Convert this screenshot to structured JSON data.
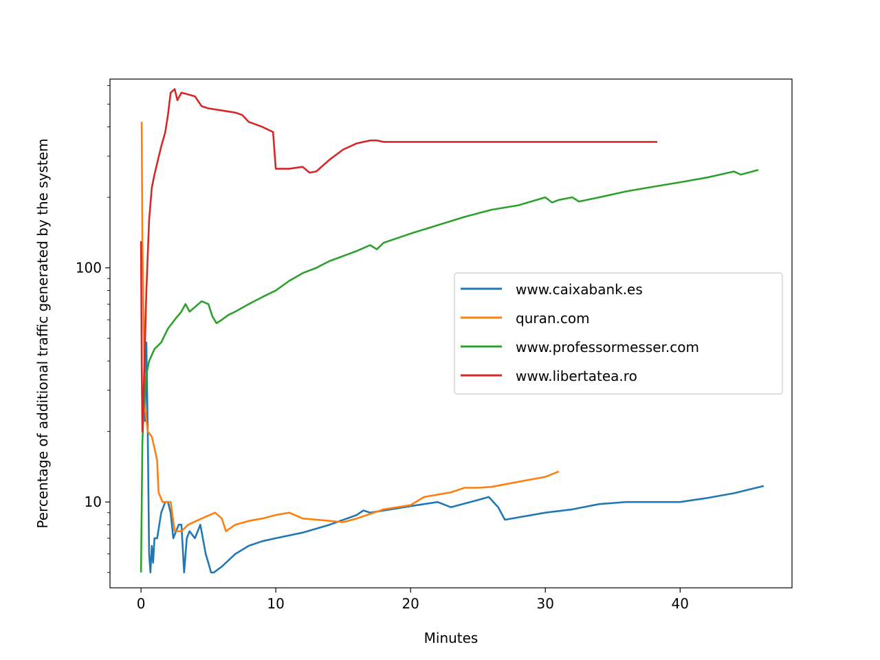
{
  "chart_data": {
    "type": "line",
    "title": "",
    "xlabel": "Minutes",
    "ylabel": "Percentage of additional traffic generated by the system",
    "xlim": [
      -2.3,
      48.3
    ],
    "ylim": [
      4.3,
      640
    ],
    "yscale": "log",
    "x_ticks": [
      0,
      10,
      20,
      30,
      40
    ],
    "x_tick_labels": [
      "0",
      "10",
      "20",
      "30",
      "40"
    ],
    "y_ticks": [
      10,
      100
    ],
    "y_tick_labels": [
      "10",
      "100"
    ],
    "grid": false,
    "legend_position": "center-right",
    "series": [
      {
        "name": "www.caixabank.es",
        "color": "#1f77b4",
        "points": [
          [
            0.3,
            22
          ],
          [
            0.4,
            48
          ],
          [
            0.5,
            20
          ],
          [
            0.6,
            6
          ],
          [
            0.7,
            5
          ],
          [
            0.8,
            6.5
          ],
          [
            0.9,
            5.5
          ],
          [
            1.0,
            7
          ],
          [
            1.2,
            7
          ],
          [
            1.5,
            9
          ],
          [
            1.8,
            10
          ],
          [
            2.0,
            10
          ],
          [
            2.2,
            9
          ],
          [
            2.4,
            7
          ],
          [
            2.6,
            7.5
          ],
          [
            2.8,
            8
          ],
          [
            3.0,
            8
          ],
          [
            3.2,
            5
          ],
          [
            3.4,
            7
          ],
          [
            3.6,
            7.5
          ],
          [
            4.0,
            7
          ],
          [
            4.4,
            8
          ],
          [
            4.8,
            6
          ],
          [
            5.0,
            5.5
          ],
          [
            5.2,
            5
          ],
          [
            5.4,
            5
          ],
          [
            6.0,
            5.3
          ],
          [
            7.0,
            6
          ],
          [
            8.0,
            6.5
          ],
          [
            9.0,
            6.8
          ],
          [
            10.0,
            7
          ],
          [
            12.0,
            7.4
          ],
          [
            14.0,
            8
          ],
          [
            16.0,
            8.8
          ],
          [
            16.5,
            9.2
          ],
          [
            17.0,
            9
          ],
          [
            20.0,
            9.6
          ],
          [
            22.0,
            10
          ],
          [
            23.0,
            9.5
          ],
          [
            25.0,
            10.2
          ],
          [
            25.8,
            10.5
          ],
          [
            26.5,
            9.5
          ],
          [
            27.0,
            8.4
          ],
          [
            30.0,
            9
          ],
          [
            32.0,
            9.3
          ],
          [
            34.0,
            9.8
          ],
          [
            36.0,
            10
          ],
          [
            40.0,
            10
          ],
          [
            42.0,
            10.4
          ],
          [
            44.0,
            10.9
          ],
          [
            46.2,
            11.7
          ]
        ]
      },
      {
        "name": "quran.com",
        "color": "#ff7f0e",
        "points": [
          [
            0.05,
            420
          ],
          [
            0.1,
            130
          ],
          [
            0.2,
            60
          ],
          [
            0.3,
            25
          ],
          [
            0.5,
            20
          ],
          [
            0.8,
            19
          ],
          [
            1.0,
            17
          ],
          [
            1.2,
            15
          ],
          [
            1.3,
            11
          ],
          [
            1.6,
            10
          ],
          [
            2.0,
            10
          ],
          [
            2.2,
            10
          ],
          [
            2.5,
            7.5
          ],
          [
            3.0,
            7.5
          ],
          [
            3.5,
            8
          ],
          [
            4.5,
            8.5
          ],
          [
            5.5,
            9
          ],
          [
            6.0,
            8.5
          ],
          [
            6.3,
            7.5
          ],
          [
            7.0,
            8
          ],
          [
            8.0,
            8.3
          ],
          [
            9.0,
            8.5
          ],
          [
            10.0,
            8.8
          ],
          [
            11.0,
            9
          ],
          [
            12.0,
            8.5
          ],
          [
            14.0,
            8.3
          ],
          [
            15.0,
            8.2
          ],
          [
            16.0,
            8.5
          ],
          [
            18.0,
            9.3
          ],
          [
            20.0,
            9.7
          ],
          [
            21.0,
            10.5
          ],
          [
            23.0,
            11
          ],
          [
            24.0,
            11.5
          ],
          [
            25.0,
            11.5
          ],
          [
            26.0,
            11.6
          ],
          [
            28.0,
            12.2
          ],
          [
            30.0,
            12.8
          ],
          [
            31.0,
            13.5
          ]
        ]
      },
      {
        "name": "www.professormesser.com",
        "color": "#2ca02c",
        "points": [
          [
            0.0,
            5
          ],
          [
            0.1,
            18
          ],
          [
            0.2,
            25
          ],
          [
            0.4,
            35
          ],
          [
            0.6,
            40
          ],
          [
            1.0,
            45
          ],
          [
            1.5,
            48
          ],
          [
            2.0,
            55
          ],
          [
            2.5,
            60
          ],
          [
            3.0,
            65
          ],
          [
            3.3,
            70
          ],
          [
            3.6,
            65
          ],
          [
            4.0,
            68
          ],
          [
            4.5,
            72
          ],
          [
            5.0,
            70
          ],
          [
            5.3,
            62
          ],
          [
            5.6,
            58
          ],
          [
            6.0,
            60
          ],
          [
            6.5,
            63
          ],
          [
            7.0,
            65
          ],
          [
            8.0,
            70
          ],
          [
            9.0,
            75
          ],
          [
            10.0,
            80
          ],
          [
            11.0,
            88
          ],
          [
            12.0,
            95
          ],
          [
            13.0,
            100
          ],
          [
            14.0,
            107
          ],
          [
            16.0,
            118
          ],
          [
            17.0,
            125
          ],
          [
            17.5,
            120
          ],
          [
            18.0,
            128
          ],
          [
            20.0,
            140
          ],
          [
            22.0,
            152
          ],
          [
            24.0,
            165
          ],
          [
            26.0,
            177
          ],
          [
            28.0,
            185
          ],
          [
            30.0,
            200
          ],
          [
            30.5,
            190
          ],
          [
            31.0,
            195
          ],
          [
            32.0,
            200
          ],
          [
            32.5,
            192
          ],
          [
            34.0,
            200
          ],
          [
            36.0,
            212
          ],
          [
            38.0,
            222
          ],
          [
            40.0,
            232
          ],
          [
            42.0,
            243
          ],
          [
            44.0,
            258
          ],
          [
            44.5,
            250
          ],
          [
            45.8,
            262
          ]
        ]
      },
      {
        "name": "www.libertatea.ro",
        "color": "#d62728",
        "points": [
          [
            0.0,
            130
          ],
          [
            0.05,
            40
          ],
          [
            0.1,
            20
          ],
          [
            0.2,
            30
          ],
          [
            0.4,
            80
          ],
          [
            0.6,
            160
          ],
          [
            0.8,
            220
          ],
          [
            1.0,
            250
          ],
          [
            1.2,
            280
          ],
          [
            1.5,
            330
          ],
          [
            1.8,
            380
          ],
          [
            2.0,
            450
          ],
          [
            2.2,
            560
          ],
          [
            2.5,
            580
          ],
          [
            2.7,
            520
          ],
          [
            3.0,
            560
          ],
          [
            3.5,
            550
          ],
          [
            4.0,
            540
          ],
          [
            4.5,
            490
          ],
          [
            5.0,
            480
          ],
          [
            6.0,
            470
          ],
          [
            7.0,
            460
          ],
          [
            7.5,
            450
          ],
          [
            8.0,
            420
          ],
          [
            9.0,
            400
          ],
          [
            9.8,
            380
          ],
          [
            10.0,
            265
          ],
          [
            11.0,
            265
          ],
          [
            12.0,
            270
          ],
          [
            12.5,
            255
          ],
          [
            13.0,
            258
          ],
          [
            14.0,
            290
          ],
          [
            15.0,
            320
          ],
          [
            16.0,
            340
          ],
          [
            17.0,
            350
          ],
          [
            17.5,
            350
          ],
          [
            18.0,
            345
          ],
          [
            19.0,
            345
          ],
          [
            20.0,
            345
          ],
          [
            25.0,
            345
          ],
          [
            30.0,
            345
          ],
          [
            35.0,
            345
          ],
          [
            38.3,
            345
          ]
        ]
      }
    ]
  }
}
